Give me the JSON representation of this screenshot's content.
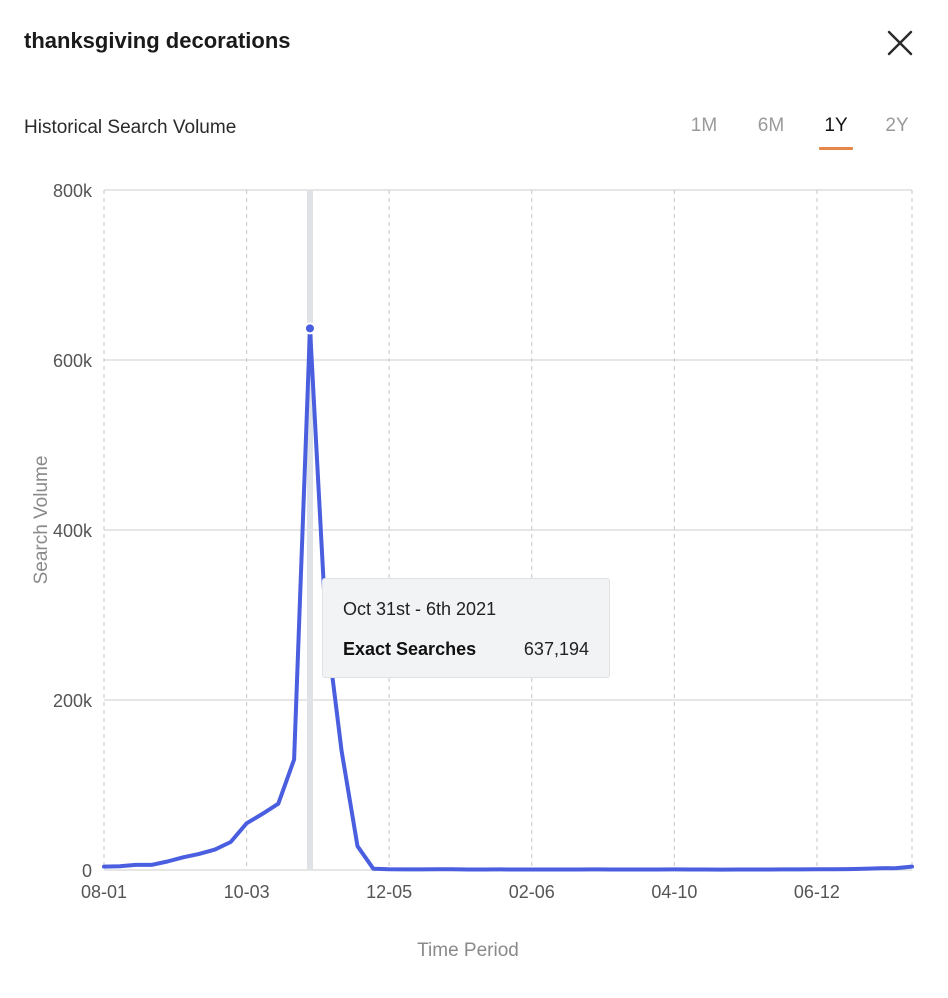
{
  "header": {
    "title": "thanksgiving decorations",
    "close_icon": "close-icon"
  },
  "panel": {
    "subtitle": "Historical Search Volume",
    "ranges": [
      {
        "label": "1M",
        "active": false
      },
      {
        "label": "6M",
        "active": false
      },
      {
        "label": "1Y",
        "active": true
      },
      {
        "label": "2Y",
        "active": false
      }
    ],
    "accent_color": "#e8864a"
  },
  "tooltip": {
    "date": "Oct 31st - 6th 2021",
    "label": "Exact Searches",
    "value": "637,194"
  },
  "chart_data": {
    "type": "line",
    "title": "",
    "xlabel": "Time Period",
    "ylabel": "Search Volume",
    "ylim": [
      0,
      800000
    ],
    "yticks": [
      0,
      200000,
      400000,
      600000,
      800000
    ],
    "ytick_labels": [
      "0",
      "200k",
      "400k",
      "600k",
      "800k"
    ],
    "xtick_labels": [
      "08-01",
      "10-03",
      "12-05",
      "02-06",
      "04-10",
      "06-12"
    ],
    "xtick_index": [
      0,
      9,
      18,
      27,
      36,
      45
    ],
    "grid": true,
    "highlight_index": 13,
    "line_color": "#4a5ee0",
    "series": [
      {
        "values": [
          4000,
          4500,
          6000,
          6000,
          10000,
          15000,
          19000,
          24000,
          33000,
          55000,
          66000,
          78000,
          130000,
          637194,
          290000,
          140000,
          28000,
          1500,
          800,
          700,
          700,
          900,
          800,
          600,
          600,
          700,
          600,
          600,
          600,
          600,
          600,
          700,
          600,
          600,
          600,
          600,
          700,
          600,
          600,
          500,
          600,
          600,
          600,
          700,
          700,
          800,
          800,
          1000,
          1500,
          2000,
          2200,
          4000
        ]
      }
    ]
  }
}
